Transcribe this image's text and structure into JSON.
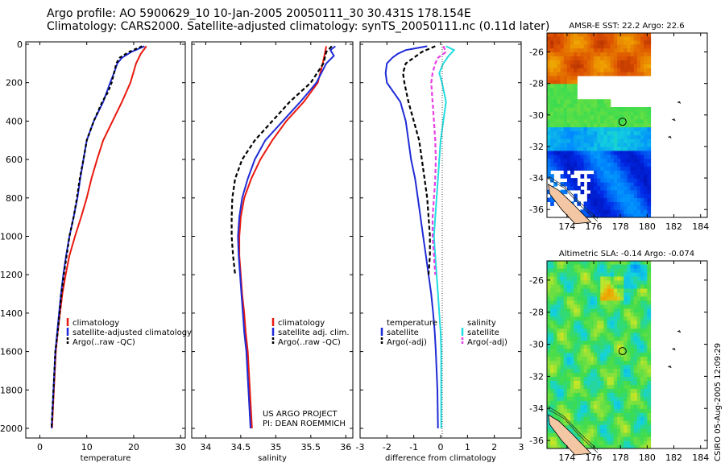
{
  "titles": {
    "line1": "Argo profile: AO 5900629_10 10-Jan-2005 20050111_30 30.431S 178.154E",
    "line2": "Climatology: CARS2000. Satellite-adjusted climatology: synTS_20050111.nc (0.11d later)"
  },
  "stamp": "CSIRO 05-Aug-2005 12:09:29",
  "credit": {
    "line1": "US ARGO PROJECT",
    "line2": "PI: DEAN ROEMMICH"
  },
  "chart_data": [
    {
      "type": "line",
      "xlabel": "temperature",
      "ylabel": "",
      "xlim": [
        -3,
        31
      ],
      "ylim": [
        2050,
        0
      ],
      "xticks": [
        0,
        10,
        20,
        30
      ],
      "yticks": [
        0,
        200,
        400,
        600,
        800,
        1000,
        1200,
        1400,
        1600,
        1800,
        2000
      ],
      "legend": [
        "climatology",
        "satellite-adjusted climatology",
        "Argo(..raw -QC)"
      ],
      "series": [
        {
          "name": "climatology",
          "color": "#e8190f",
          "dash": "none",
          "points": [
            [
              22.7,
              10
            ],
            [
              21.5,
              50
            ],
            [
              20.5,
              100
            ],
            [
              19.3,
              200
            ],
            [
              17.5,
              300
            ],
            [
              15.5,
              400
            ],
            [
              13.5,
              500
            ],
            [
              12.2,
              600
            ],
            [
              11,
              700
            ],
            [
              10,
              800
            ],
            [
              8.8,
              900
            ],
            [
              7.5,
              1000
            ],
            [
              6.3,
              1100
            ],
            [
              5.5,
              1200
            ],
            [
              4.8,
              1300
            ],
            [
              4.3,
              1400
            ],
            [
              3.8,
              1500
            ],
            [
              3.4,
              1600
            ],
            [
              3.0,
              1800
            ],
            [
              2.6,
              2000
            ]
          ]
        },
        {
          "name": "satellite-adjusted climatology",
          "color": "#1f2bd6",
          "dash": "none",
          "points": [
            [
              22.3,
              10
            ],
            [
              19.5,
              40
            ],
            [
              17.5,
              70
            ],
            [
              16.5,
              100
            ],
            [
              15.8,
              150
            ],
            [
              15,
              200
            ],
            [
              13.5,
              300
            ],
            [
              11.5,
              400
            ],
            [
              10,
              500
            ],
            [
              9.3,
              600
            ],
            [
              8.6,
              700
            ],
            [
              8,
              800
            ],
            [
              7.2,
              900
            ],
            [
              6.3,
              1000
            ],
            [
              5.6,
              1100
            ],
            [
              5,
              1200
            ],
            [
              4.5,
              1300
            ],
            [
              4.1,
              1400
            ],
            [
              3.7,
              1500
            ],
            [
              3.3,
              1600
            ],
            [
              2.9,
              1800
            ],
            [
              2.5,
              2000
            ]
          ]
        },
        {
          "name": "Argo(..raw -QC)",
          "color": "#000000",
          "dash": "4,3",
          "points": [
            [
              21.8,
              10
            ],
            [
              19,
              40
            ],
            [
              17,
              70
            ],
            [
              16.3,
              100
            ],
            [
              15.8,
              150
            ],
            [
              15.3,
              200
            ],
            [
              14.5,
              250
            ],
            [
              13.3,
              300
            ],
            [
              11.5,
              400
            ],
            [
              10,
              500
            ],
            [
              9.3,
              600
            ],
            [
              8.5,
              700
            ],
            [
              7.9,
              800
            ],
            [
              7.2,
              900
            ],
            [
              6.3,
              1000
            ],
            [
              5.7,
              1100
            ],
            [
              5.1,
              1200
            ],
            [
              4.6,
              1300
            ],
            [
              4.2,
              1400
            ],
            [
              3.8,
              1500
            ],
            [
              3.3,
              1600
            ],
            [
              2.9,
              1800
            ],
            [
              2.5,
              2000
            ]
          ]
        }
      ]
    },
    {
      "type": "line",
      "xlabel": "salinity",
      "ylabel": "",
      "xlim": [
        33.8,
        36.1
      ],
      "ylim": [
        2050,
        0
      ],
      "xticks": [
        34,
        34.5,
        35,
        35.5,
        36
      ],
      "legend": [
        "climatology",
        "satellite adj. clim.",
        "Argo(..raw -QC)"
      ],
      "series": [
        {
          "name": "climatology",
          "color": "#e8190f",
          "dash": "none",
          "points": [
            [
              35.72,
              10
            ],
            [
              35.7,
              50
            ],
            [
              35.67,
              100
            ],
            [
              35.6,
              200
            ],
            [
              35.4,
              300
            ],
            [
              35.15,
              400
            ],
            [
              34.95,
              500
            ],
            [
              34.78,
              600
            ],
            [
              34.65,
              700
            ],
            [
              34.55,
              800
            ],
            [
              34.5,
              900
            ],
            [
              34.48,
              1000
            ],
            [
              34.48,
              1100
            ],
            [
              34.5,
              1200
            ],
            [
              34.52,
              1300
            ],
            [
              34.55,
              1400
            ],
            [
              34.57,
              1500
            ],
            [
              34.6,
              1600
            ],
            [
              34.63,
              1800
            ],
            [
              34.66,
              2000
            ]
          ]
        },
        {
          "name": "satellite adj. clim.",
          "color": "#1f2bd6",
          "dash": "none",
          "points": [
            [
              35.85,
              10
            ],
            [
              35.78,
              30
            ],
            [
              35.83,
              60
            ],
            [
              35.72,
              100
            ],
            [
              35.58,
              200
            ],
            [
              35.35,
              300
            ],
            [
              35.1,
              400
            ],
            [
              34.85,
              500
            ],
            [
              34.7,
              600
            ],
            [
              34.6,
              700
            ],
            [
              34.52,
              800
            ],
            [
              34.48,
              900
            ],
            [
              34.46,
              1000
            ],
            [
              34.47,
              1100
            ],
            [
              34.49,
              1200
            ],
            [
              34.51,
              1300
            ],
            [
              34.53,
              1400
            ],
            [
              34.55,
              1500
            ],
            [
              34.58,
              1600
            ],
            [
              34.61,
              1800
            ],
            [
              34.64,
              2000
            ]
          ]
        },
        {
          "name": "Argo(..raw -QC)",
          "color": "#000000",
          "dash": "5,3",
          "points": [
            [
              35.8,
              10
            ],
            [
              35.72,
              40
            ],
            [
              35.68,
              100
            ],
            [
              35.5,
              200
            ],
            [
              35.2,
              300
            ],
            [
              34.95,
              400
            ],
            [
              34.7,
              500
            ],
            [
              34.52,
              600
            ],
            [
              34.42,
              700
            ],
            [
              34.38,
              800
            ],
            [
              34.37,
              900
            ],
            [
              34.37,
              1000
            ],
            [
              34.39,
              1100
            ],
            [
              34.42,
              1200
            ]
          ]
        }
      ]
    },
    {
      "type": "line",
      "xlabel": "difference from climatology",
      "ylabel": "",
      "xlim": [
        -3,
        3
      ],
      "ylim": [
        2050,
        0
      ],
      "xticks": [
        -3,
        -2,
        -1,
        0,
        1,
        2,
        3
      ],
      "legend_left": {
        "heading": "temperature",
        "entries": [
          "satellite",
          "Argo(-adj)"
        ]
      },
      "legend_right": {
        "heading": "salinity",
        "entries": [
          "satellite",
          "Argo(-adj)"
        ]
      },
      "series": [
        {
          "name": "temperature satellite",
          "color": "#1f2bd6",
          "dash": "none",
          "points": [
            [
              -0.5,
              10
            ],
            [
              -1.3,
              30
            ],
            [
              -1.6,
              50
            ],
            [
              -1.8,
              70
            ],
            [
              -2.0,
              100
            ],
            [
              -2.05,
              150
            ],
            [
              -2.0,
              200
            ],
            [
              -1.5,
              300
            ],
            [
              -1.3,
              400
            ],
            [
              -1.2,
              500
            ],
            [
              -1.1,
              600
            ],
            [
              -0.95,
              700
            ],
            [
              -0.85,
              800
            ],
            [
              -0.75,
              900
            ],
            [
              -0.65,
              1000
            ],
            [
              -0.55,
              1100
            ],
            [
              -0.45,
              1200
            ],
            [
              -0.35,
              1300
            ],
            [
              -0.28,
              1400
            ],
            [
              -0.22,
              1500
            ],
            [
              -0.18,
              1600
            ],
            [
              -0.12,
              1800
            ],
            [
              -0.1,
              2000
            ]
          ]
        },
        {
          "name": "temperature Argo(-adj)",
          "color": "#000000",
          "dash": "5,3",
          "points": [
            [
              -0.2,
              10
            ],
            [
              -0.7,
              40
            ],
            [
              -1.0,
              70
            ],
            [
              -1.3,
              100
            ],
            [
              -1.4,
              150
            ],
            [
              -1.35,
              200
            ],
            [
              -1.2,
              300
            ],
            [
              -1.0,
              400
            ],
            [
              -0.8,
              500
            ],
            [
              -0.7,
              600
            ],
            [
              -0.6,
              700
            ],
            [
              -0.5,
              800
            ],
            [
              -0.45,
              900
            ],
            [
              -0.4,
              1000
            ],
            [
              -0.4,
              1100
            ],
            [
              -0.45,
              1200
            ]
          ]
        },
        {
          "name": "salinity satellite",
          "color": "#22dde0",
          "dash": "none",
          "points": [
            [
              0.2,
              10
            ],
            [
              0.5,
              30
            ],
            [
              0.3,
              60
            ],
            [
              0.1,
              100
            ],
            [
              -0.05,
              150
            ],
            [
              0.05,
              200
            ],
            [
              0.2,
              300
            ],
            [
              0.1,
              400
            ],
            [
              0.0,
              500
            ],
            [
              -0.05,
              600
            ],
            [
              -0.1,
              700
            ],
            [
              -0.15,
              800
            ],
            [
              -0.2,
              900
            ],
            [
              -0.25,
              1000
            ],
            [
              -0.2,
              1100
            ],
            [
              -0.15,
              1200
            ],
            [
              -0.1,
              1300
            ],
            [
              -0.05,
              1400
            ],
            [
              0.0,
              1500
            ],
            [
              0.02,
              1600
            ],
            [
              0.02,
              1800
            ],
            [
              0.02,
              2000
            ]
          ]
        },
        {
          "name": "salinity Argo(-adj)",
          "color": "#e63fe6",
          "dash": "5,3",
          "points": [
            [
              0.1,
              10
            ],
            [
              0.2,
              40
            ],
            [
              -0.1,
              70
            ],
            [
              -0.2,
              100
            ],
            [
              -0.3,
              150
            ],
            [
              -0.35,
              200
            ],
            [
              -0.3,
              300
            ],
            [
              -0.25,
              400
            ],
            [
              -0.2,
              500
            ],
            [
              -0.18,
              600
            ],
            [
              -0.2,
              700
            ],
            [
              -0.25,
              800
            ],
            [
              -0.3,
              900
            ],
            [
              -0.3,
              1000
            ],
            [
              -0.25,
              1100
            ],
            [
              -0.2,
              1200
            ]
          ]
        }
      ]
    },
    {
      "type": "heatmap",
      "title": "AMSR-E SST: 22.2 Argo: 22.6",
      "xlim": [
        172.5,
        184.5
      ],
      "ylim": [
        -36.5,
        -24.8
      ],
      "xticks": [
        174,
        176,
        178,
        180,
        182,
        184
      ],
      "yticks": [
        -26,
        -28,
        -30,
        -32,
        -34,
        -36
      ],
      "argo_position": [
        178.154,
        -30.431
      ]
    },
    {
      "type": "heatmap",
      "title": "Altimetric SLA: -0.14 Argo: -0.074",
      "xlim": [
        172.5,
        184.5
      ],
      "ylim": [
        -36.5,
        -24.8
      ],
      "xticks": [
        174,
        176,
        178,
        180,
        182,
        184
      ],
      "yticks": [
        -26,
        -28,
        -30,
        -32,
        -34,
        -36
      ],
      "argo_position": [
        178.154,
        -30.431
      ]
    }
  ]
}
